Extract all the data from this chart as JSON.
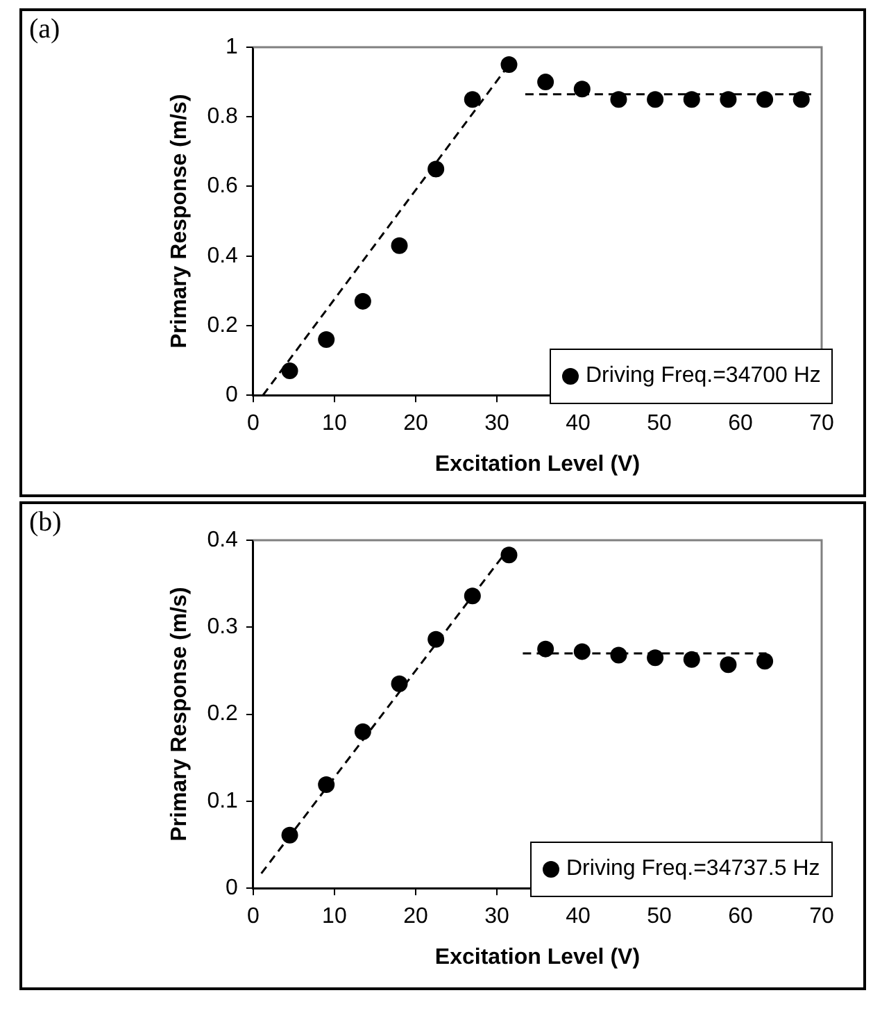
{
  "chart_data": [
    {
      "type": "scatter",
      "title": "(a)",
      "xlabel": "Excitation Level (V)",
      "ylabel": "Primary Response (m/s)",
      "xlim": [
        0,
        70
      ],
      "xticks": [
        0,
        10,
        20,
        30,
        40,
        50,
        60,
        70
      ],
      "ylim": [
        0,
        1
      ],
      "yticks": [
        0,
        0.2,
        0.4,
        0.6,
        0.8,
        1
      ],
      "grid": false,
      "legend": "bottom right",
      "marker": "circle",
      "series": [
        {
          "name": "Driving Freq.=34700 Hz",
          "color": "#000000",
          "x": [
            4.5,
            9,
            13.5,
            18,
            22.5,
            27,
            31.5,
            36,
            40.5,
            45,
            49.5,
            54,
            58.5,
            63,
            67.5
          ],
          "values": [
            0.07,
            0.16,
            0.27,
            0.43,
            0.65,
            0.85,
            0.95,
            0.9,
            0.88,
            0.85,
            0.85,
            0.85,
            0.85,
            0.85,
            0.85
          ]
        },
        {
          "type": "line",
          "color": "#000000",
          "line_style": "dashed",
          "marker": "none",
          "x": [
            1.2,
            31.5
          ],
          "values": [
            0,
            0.95
          ]
        },
        {
          "type": "line",
          "color": "#000000",
          "line_style": "dashed",
          "marker": "none",
          "x": [
            33.5,
            69
          ],
          "values": [
            0.865,
            0.865
          ]
        }
      ]
    },
    {
      "type": "scatter",
      "title": "(b)",
      "xlabel": "Excitation Level (V)",
      "ylabel": "Primary Response (m/s)",
      "xlim": [
        0,
        70
      ],
      "xticks": [
        0,
        10,
        20,
        30,
        40,
        50,
        60,
        70
      ],
      "ylim": [
        0,
        0.4
      ],
      "yticks": [
        0,
        0.1,
        0.2,
        0.3,
        0.4
      ],
      "grid": false,
      "legend": "bottom right",
      "marker": "circle",
      "series": [
        {
          "name": "Driving Freq.=34737.5 Hz",
          "color": "#000000",
          "x": [
            4.5,
            9,
            13.5,
            18,
            22.5,
            27,
            31.5,
            36,
            40.5,
            45,
            49.5,
            54,
            58.5,
            63
          ],
          "values": [
            0.061,
            0.119,
            0.18,
            0.235,
            0.286,
            0.336,
            0.383,
            0.275,
            0.272,
            0.268,
            0.265,
            0.263,
            0.257,
            0.261
          ]
        },
        {
          "type": "line",
          "color": "#000000",
          "line_style": "dashed",
          "marker": "none",
          "x": [
            1,
            31
          ],
          "values": [
            0.017,
            0.385
          ]
        },
        {
          "type": "line",
          "color": "#000000",
          "line_style": "dashed",
          "marker": "none",
          "x": [
            33.2,
            63.2
          ],
          "values": [
            0.27,
            0.27
          ]
        }
      ]
    }
  ]
}
